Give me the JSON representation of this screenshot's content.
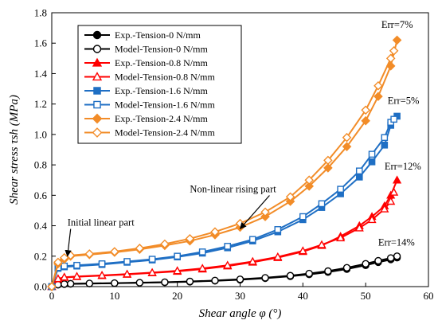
{
  "chart_data": {
    "type": "line",
    "xlabel": "Shear angle φ (°)",
    "ylabel": "Shear stress τsh (MPa)",
    "xlim": [
      0,
      60
    ],
    "ylim": [
      0,
      1.8
    ],
    "xticks": [
      0,
      10,
      20,
      30,
      40,
      50,
      60
    ],
    "yticks": [
      0.0,
      0.2,
      0.4,
      0.6,
      0.8,
      1.0,
      1.2,
      1.4,
      1.6,
      1.8
    ],
    "grid": false,
    "legend_position": "top-left",
    "series": [
      {
        "name": "Exp.-Tension-0 N/mm",
        "color": "#000000",
        "marker": "circle-filled",
        "points": [
          [
            0,
            0
          ],
          [
            1,
            0.012
          ],
          [
            2,
            0.016
          ],
          [
            3,
            0.018
          ],
          [
            6,
            0.02
          ],
          [
            10,
            0.022
          ],
          [
            14,
            0.025
          ],
          [
            18,
            0.028
          ],
          [
            22,
            0.032
          ],
          [
            26,
            0.038
          ],
          [
            30,
            0.045
          ],
          [
            34,
            0.055
          ],
          [
            38,
            0.068
          ],
          [
            41,
            0.08
          ],
          [
            44,
            0.095
          ],
          [
            47,
            0.115
          ],
          [
            50,
            0.14
          ],
          [
            52,
            0.16
          ],
          [
            54,
            0.178
          ],
          [
            55,
            0.19
          ]
        ]
      },
      {
        "name": "Model-Tension-0 N/mm",
        "color": "#000000",
        "marker": "circle-open",
        "points": [
          [
            0,
            0
          ],
          [
            1,
            0.013
          ],
          [
            2,
            0.017
          ],
          [
            3,
            0.019
          ],
          [
            6,
            0.021
          ],
          [
            10,
            0.023
          ],
          [
            14,
            0.026
          ],
          [
            18,
            0.029
          ],
          [
            22,
            0.034
          ],
          [
            26,
            0.04
          ],
          [
            30,
            0.048
          ],
          [
            34,
            0.058
          ],
          [
            38,
            0.072
          ],
          [
            41,
            0.086
          ],
          [
            44,
            0.102
          ],
          [
            47,
            0.124
          ],
          [
            50,
            0.15
          ],
          [
            52,
            0.17
          ],
          [
            54,
            0.188
          ],
          [
            55,
            0.2
          ]
        ]
      },
      {
        "name": "Exp.-Tension-0.8 N/mm",
        "color": "#ff0000",
        "marker": "triangle-filled",
        "points": [
          [
            0,
            0
          ],
          [
            1,
            0.05
          ],
          [
            2,
            0.06
          ],
          [
            4,
            0.065
          ],
          [
            8,
            0.072
          ],
          [
            12,
            0.08
          ],
          [
            16,
            0.09
          ],
          [
            20,
            0.1
          ],
          [
            24,
            0.115
          ],
          [
            28,
            0.135
          ],
          [
            32,
            0.16
          ],
          [
            36,
            0.19
          ],
          [
            40,
            0.23
          ],
          [
            43,
            0.27
          ],
          [
            46,
            0.33
          ],
          [
            49,
            0.4
          ],
          [
            51,
            0.46
          ],
          [
            53,
            0.53
          ],
          [
            54,
            0.6
          ],
          [
            55,
            0.7
          ]
        ]
      },
      {
        "name": "Model-Tension-0.8 N/mm",
        "color": "#ff0000",
        "marker": "triangle-open",
        "points": [
          [
            0,
            0
          ],
          [
            1,
            0.052
          ],
          [
            2,
            0.062
          ],
          [
            4,
            0.067
          ],
          [
            8,
            0.074
          ],
          [
            12,
            0.082
          ],
          [
            16,
            0.092
          ],
          [
            20,
            0.104
          ],
          [
            24,
            0.12
          ],
          [
            28,
            0.14
          ],
          [
            32,
            0.165
          ],
          [
            36,
            0.195
          ],
          [
            40,
            0.235
          ],
          [
            43,
            0.275
          ],
          [
            46,
            0.32
          ],
          [
            49,
            0.385
          ],
          [
            51,
            0.44
          ],
          [
            53,
            0.51
          ],
          [
            54,
            0.56
          ],
          [
            54.5,
            0.62
          ]
        ]
      },
      {
        "name": "Exp.-Tension-1.6 N/mm",
        "color": "#1f6fc4",
        "marker": "square-filled",
        "points": [
          [
            0,
            0
          ],
          [
            1,
            0.12
          ],
          [
            2,
            0.13
          ],
          [
            4,
            0.135
          ],
          [
            8,
            0.145
          ],
          [
            12,
            0.16
          ],
          [
            16,
            0.175
          ],
          [
            20,
            0.195
          ],
          [
            24,
            0.22
          ],
          [
            28,
            0.255
          ],
          [
            32,
            0.3
          ],
          [
            36,
            0.36
          ],
          [
            40,
            0.44
          ],
          [
            43,
            0.52
          ],
          [
            46,
            0.61
          ],
          [
            49,
            0.72
          ],
          [
            51,
            0.82
          ],
          [
            53,
            0.93
          ],
          [
            54,
            1.06
          ],
          [
            55,
            1.12
          ]
        ]
      },
      {
        "name": "Model-Tension-1.6 N/mm",
        "color": "#1f6fc4",
        "marker": "square-open",
        "points": [
          [
            0,
            0
          ],
          [
            1,
            0.125
          ],
          [
            2,
            0.135
          ],
          [
            4,
            0.14
          ],
          [
            8,
            0.15
          ],
          [
            12,
            0.165
          ],
          [
            16,
            0.18
          ],
          [
            20,
            0.2
          ],
          [
            24,
            0.228
          ],
          [
            28,
            0.265
          ],
          [
            32,
            0.31
          ],
          [
            36,
            0.375
          ],
          [
            40,
            0.46
          ],
          [
            43,
            0.545
          ],
          [
            46,
            0.64
          ],
          [
            49,
            0.76
          ],
          [
            51,
            0.87
          ],
          [
            53,
            0.98
          ],
          [
            54,
            1.08
          ],
          [
            54.5,
            1.1
          ]
        ]
      },
      {
        "name": "Exp.-Tension-2.4 N/mm",
        "color": "#f28c28",
        "marker": "diamond-filled",
        "points": [
          [
            0,
            0
          ],
          [
            1,
            0.15
          ],
          [
            2,
            0.18
          ],
          [
            3,
            0.2
          ],
          [
            6,
            0.21
          ],
          [
            10,
            0.225
          ],
          [
            14,
            0.245
          ],
          [
            18,
            0.27
          ],
          [
            22,
            0.3
          ],
          [
            26,
            0.34
          ],
          [
            30,
            0.39
          ],
          [
            34,
            0.46
          ],
          [
            38,
            0.56
          ],
          [
            41,
            0.66
          ],
          [
            44,
            0.78
          ],
          [
            47,
            0.92
          ],
          [
            50,
            1.09
          ],
          [
            52,
            1.25
          ],
          [
            54,
            1.45
          ],
          [
            55,
            1.62
          ]
        ]
      },
      {
        "name": "Model-Tension-2.4 N/mm",
        "color": "#f28c28",
        "marker": "diamond-open",
        "points": [
          [
            0,
            0
          ],
          [
            1,
            0.16
          ],
          [
            2,
            0.19
          ],
          [
            3,
            0.205
          ],
          [
            6,
            0.215
          ],
          [
            10,
            0.23
          ],
          [
            14,
            0.252
          ],
          [
            18,
            0.28
          ],
          [
            22,
            0.315
          ],
          [
            26,
            0.36
          ],
          [
            30,
            0.415
          ],
          [
            34,
            0.49
          ],
          [
            38,
            0.59
          ],
          [
            41,
            0.7
          ],
          [
            44,
            0.83
          ],
          [
            47,
            0.98
          ],
          [
            50,
            1.16
          ],
          [
            52,
            1.32
          ],
          [
            54,
            1.5
          ],
          [
            54.5,
            1.55
          ]
        ]
      }
    ],
    "annotations": [
      {
        "text": "Err=7%",
        "x": 52.5,
        "y": 1.7
      },
      {
        "text": "Err=5%",
        "x": 53.5,
        "y": 1.2
      },
      {
        "text": "Err=12%",
        "x": 53.0,
        "y": 0.77
      },
      {
        "text": "Err=14%",
        "x": 52.0,
        "y": 0.27
      },
      {
        "text": "Non-linear rising part",
        "x": 22,
        "y": 0.62,
        "arrow_to": [
          30,
          0.38
        ]
      },
      {
        "text": "Initial linear part",
        "x": 2.5,
        "y": 0.4,
        "arrow_to": [
          2.5,
          0.2
        ]
      }
    ]
  }
}
